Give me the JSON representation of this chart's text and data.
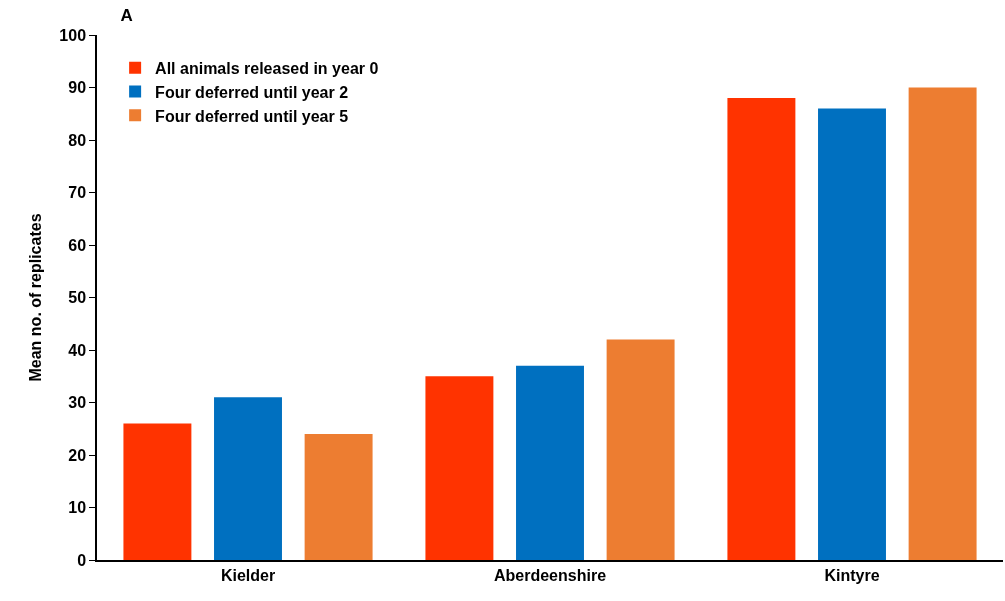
{
  "chart_data": {
    "type": "bar",
    "title": "A",
    "ylabel": "Mean no. of replicates",
    "categories": [
      "Kielder",
      "Aberdeenshire",
      "Kintyre"
    ],
    "series": [
      {
        "name": "All animals released in year 0",
        "color": "#ff3300",
        "values": [
          26,
          35,
          88
        ]
      },
      {
        "name": "Four deferred until year 2",
        "color": "#0070c0",
        "values": [
          31,
          37,
          86
        ]
      },
      {
        "name": "Four deferred until year 5",
        "color": "#ed7d31",
        "values": [
          24,
          42,
          90
        ]
      }
    ],
    "ylim": [
      0,
      100
    ],
    "yticks": [
      0,
      10,
      20,
      30,
      40,
      50,
      60,
      70,
      80,
      90,
      100
    ],
    "grid": false,
    "legend": "top left"
  }
}
